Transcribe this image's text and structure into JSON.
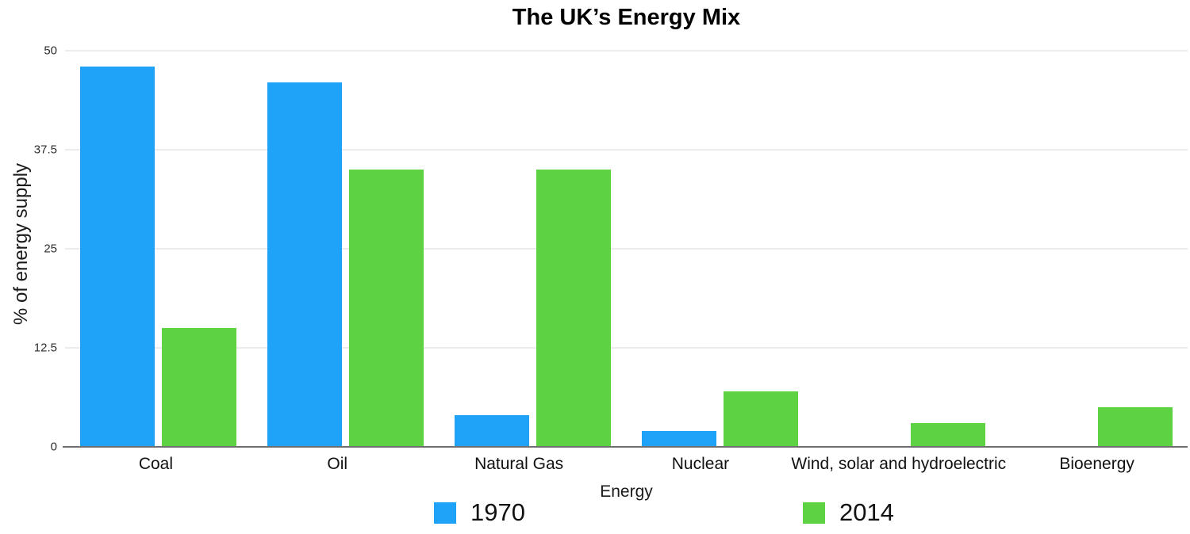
{
  "title": "The UK’s Energy Mix",
  "colors": {
    "series_1970": "#1EA3F9",
    "series_2014": "#5DD243",
    "gridline": "#D9D9D9",
    "axis_line": "#6F6F6F"
  },
  "chart_data": {
    "type": "bar",
    "title": "The UK’s Energy Mix",
    "xlabel": "Energy",
    "ylabel": "% of energy supply",
    "categories": [
      "Coal",
      "Oil",
      "Natural Gas",
      "Nuclear",
      "Wind, solar and hydroelectric",
      "Bioenergy"
    ],
    "series": [
      {
        "name": "1970",
        "color": "#1EA3F9",
        "values": [
          48,
          46,
          4,
          2,
          0,
          0
        ]
      },
      {
        "name": "2014",
        "color": "#5DD243",
        "values": [
          15,
          35,
          35,
          7,
          3,
          5
        ]
      }
    ],
    "ylim": [
      0,
      50
    ],
    "yticks": [
      0,
      12.5,
      25,
      37.5,
      50
    ],
    "grid": true,
    "legend_position": "bottom"
  }
}
